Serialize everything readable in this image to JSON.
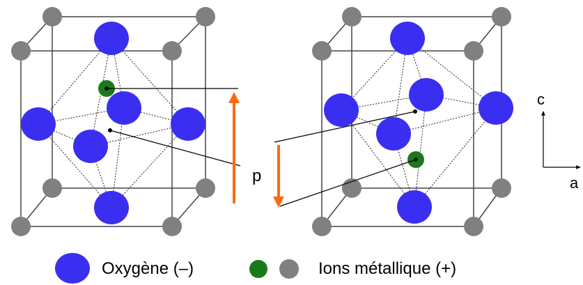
{
  "labels": {
    "p": "p",
    "axis_c": "c",
    "axis_a": "a"
  },
  "legend": {
    "oxygen": "Oxygène (–)",
    "metal": "Ions métallique (+)"
  },
  "colors": {
    "oxygen": "#3a2ff0",
    "metal_center": "#1a7a1a",
    "metal_corner": "#808080",
    "arrow": "#ff6a10",
    "edge": "#444444"
  }
}
